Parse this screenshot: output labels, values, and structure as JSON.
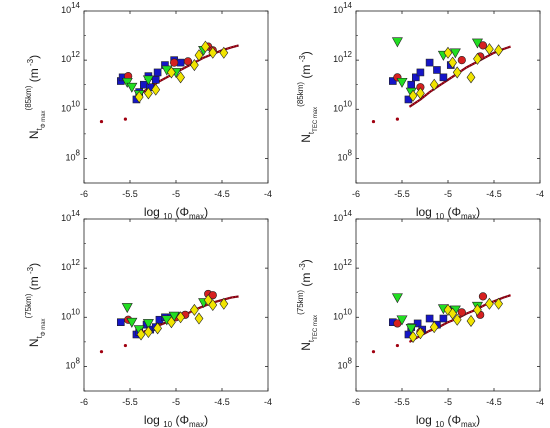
{
  "chart_data": [
    {
      "type": "scatter",
      "xlabel": {
        "main": "log",
        "sub": "10",
        "arg_prefix": "(Φ",
        "arg_sub": "max",
        "arg_suffix": ")"
      },
      "ylabel": {
        "base": "N",
        "sup": "(85km)",
        "sub": "t",
        "subsub": "Φ max",
        "units": "(m",
        "units_sup": "-3",
        "units_close": ")"
      },
      "xlim": [
        -6,
        -4
      ],
      "ylim_log10": [
        7,
        14
      ],
      "log_y": true,
      "x_ticks": [
        "-6",
        "-5.5",
        "-5",
        "-4.5",
        "-4"
      ],
      "y_ticks": [
        {
          "base": "10",
          "exp": "8",
          "v": 8
        },
        {
          "base": "10",
          "exp": "10",
          "v": 10
        },
        {
          "base": "10",
          "exp": "12",
          "v": 12
        },
        {
          "base": "10",
          "exp": "14",
          "v": 14
        }
      ],
      "grid": false,
      "fit_curve": {
        "x": [
          -5.42,
          -5.3,
          -5.2,
          -5.1,
          -5.0,
          -4.9,
          -4.8,
          -4.7,
          -4.6,
          -4.5,
          -4.4,
          -4.32
        ],
        "log10_y": [
          10.55,
          10.85,
          11.1,
          11.3,
          11.5,
          11.7,
          11.9,
          12.1,
          12.25,
          12.4,
          12.52,
          12.6
        ]
      },
      "small_dots_x": [
        -5.81,
        -5.55
      ],
      "small_dots_log10_y": [
        9.5,
        9.6
      ],
      "series": [
        {
          "marker": "square",
          "color": "#1515c8",
          "points": [
            [
              -5.6,
              11.15
            ],
            [
              -5.58,
              11.3
            ],
            [
              -5.43,
              10.4
            ],
            [
              -5.4,
              10.7
            ],
            [
              -5.35,
              11.0
            ],
            [
              -5.3,
              11.35
            ],
            [
              -5.28,
              10.9
            ],
            [
              -5.22,
              11.2
            ],
            [
              -5.2,
              11.5
            ],
            [
              -5.12,
              11.8
            ],
            [
              -5.02,
              12.0
            ],
            [
              -4.95,
              11.9
            ]
          ]
        },
        {
          "marker": "circle",
          "color": "#d62020",
          "points": [
            [
              -5.52,
              11.35
            ],
            [
              -5.02,
              11.9
            ],
            [
              -4.87,
              11.95
            ],
            [
              -4.65,
              12.55
            ],
            [
              -4.6,
              12.4
            ]
          ]
        },
        {
          "marker": "triangle-down",
          "color": "#22dd22",
          "points": [
            [
              -5.53,
              11.1
            ],
            [
              -5.48,
              10.9
            ],
            [
              -5.4,
              10.6
            ],
            [
              -5.3,
              11.2
            ],
            [
              -5.1,
              11.6
            ],
            [
              -5.0,
              11.5
            ],
            [
              -4.7,
              12.4
            ]
          ]
        },
        {
          "marker": "diamond",
          "color": "#f1e400",
          "points": [
            [
              -5.4,
              10.5
            ],
            [
              -5.3,
              10.65
            ],
            [
              -5.22,
              10.8
            ],
            [
              -5.05,
              11.5
            ],
            [
              -4.95,
              11.3
            ],
            [
              -4.8,
              11.8
            ],
            [
              -4.75,
              12.2
            ],
            [
              -4.68,
              12.55
            ],
            [
              -4.6,
              12.3
            ],
            [
              -4.48,
              12.3
            ]
          ]
        }
      ]
    },
    {
      "type": "scatter",
      "xlabel": {
        "main": "log",
        "sub": "10",
        "arg_prefix": "(Φ",
        "arg_sub": "max",
        "arg_suffix": ")"
      },
      "ylabel": {
        "base": "N",
        "sup": "(85km)",
        "sub": "t",
        "subsub": "TEC max",
        "units": "(m",
        "units_sup": "-3",
        "units_close": ")"
      },
      "xlim": [
        -6,
        -4
      ],
      "ylim_log10": [
        7,
        14
      ],
      "log_y": true,
      "x_ticks": [
        "-6",
        "-5.5",
        "-5",
        "-4.5",
        "-4"
      ],
      "y_ticks": [
        {
          "base": "10",
          "exp": "8",
          "v": 8
        },
        {
          "base": "10",
          "exp": "10",
          "v": 10
        },
        {
          "base": "10",
          "exp": "12",
          "v": 12
        },
        {
          "base": "10",
          "exp": "14",
          "v": 14
        }
      ],
      "grid": false,
      "fit_curve": {
        "x": [
          -5.42,
          -5.3,
          -5.2,
          -5.1,
          -5.0,
          -4.9,
          -4.8,
          -4.7,
          -4.6,
          -4.5,
          -4.4,
          -4.32
        ],
        "log10_y": [
          10.1,
          10.4,
          10.7,
          10.95,
          11.2,
          11.45,
          11.7,
          11.9,
          12.1,
          12.3,
          12.45,
          12.55
        ]
      },
      "small_dots_x": [
        -5.81,
        -5.55
      ],
      "small_dots_log10_y": [
        9.5,
        9.6
      ],
      "series": [
        {
          "marker": "square",
          "color": "#1515c8",
          "points": [
            [
              -5.6,
              11.15
            ],
            [
              -5.43,
              10.4
            ],
            [
              -5.4,
              11.0
            ],
            [
              -5.35,
              11.3
            ],
            [
              -5.3,
              11.5
            ],
            [
              -5.2,
              11.9
            ],
            [
              -5.12,
              11.6
            ],
            [
              -5.05,
              11.3
            ],
            [
              -4.97,
              11.8
            ]
          ]
        },
        {
          "marker": "circle",
          "color": "#d62020",
          "points": [
            [
              -5.55,
              11.3
            ],
            [
              -5.3,
              10.9
            ],
            [
              -4.85,
              12.0
            ],
            [
              -4.65,
              12.15
            ],
            [
              -4.62,
              12.6
            ]
          ]
        },
        {
          "marker": "triangle-down",
          "color": "#22dd22",
          "points": [
            [
              -5.55,
              12.75
            ],
            [
              -5.5,
              11.1
            ],
            [
              -5.4,
              10.7
            ],
            [
              -5.05,
              12.2
            ],
            [
              -4.92,
              12.3
            ],
            [
              -4.68,
              12.7
            ]
          ]
        },
        {
          "marker": "diamond",
          "color": "#f1e400",
          "points": [
            [
              -5.38,
              10.55
            ],
            [
              -5.3,
              10.65
            ],
            [
              -5.15,
              11.0
            ],
            [
              -5.0,
              12.3
            ],
            [
              -4.95,
              11.9
            ],
            [
              -4.9,
              11.5
            ],
            [
              -4.75,
              11.3
            ],
            [
              -4.68,
              12.05
            ],
            [
              -4.55,
              12.45
            ],
            [
              -4.45,
              12.4
            ]
          ]
        }
      ]
    },
    {
      "type": "scatter",
      "xlabel": {
        "main": "log",
        "sub": "10",
        "arg_prefix": "(Φ",
        "arg_sub": "max",
        "arg_suffix": ")"
      },
      "ylabel": {
        "base": "N",
        "sup": "(75km)",
        "sub": "t",
        "subsub": "Φ max",
        "units": "(m",
        "units_sup": "-3",
        "units_close": ")"
      },
      "xlim": [
        -6,
        -4
      ],
      "ylim_log10": [
        7,
        14
      ],
      "log_y": true,
      "x_ticks": [
        "-6",
        "-5.5",
        "-5",
        "-4.5",
        "-4"
      ],
      "y_ticks": [
        {
          "base": "10",
          "exp": "8",
          "v": 8
        },
        {
          "base": "10",
          "exp": "10",
          "v": 10
        },
        {
          "base": "10",
          "exp": "12",
          "v": 12
        },
        {
          "base": "10",
          "exp": "14",
          "v": 14
        }
      ],
      "grid": false,
      "fit_curve": {
        "x": [
          -5.42,
          -5.3,
          -5.2,
          -5.1,
          -5.0,
          -4.9,
          -4.8,
          -4.7,
          -4.6,
          -4.5,
          -4.4,
          -4.32
        ],
        "log10_y": [
          9.3,
          9.5,
          9.65,
          9.8,
          9.95,
          10.1,
          10.3,
          10.45,
          10.6,
          10.7,
          10.8,
          10.85
        ]
      },
      "small_dots_x": [
        -5.81,
        -5.55
      ],
      "small_dots_log10_y": [
        8.6,
        8.85
      ],
      "series": [
        {
          "marker": "square",
          "color": "#1515c8",
          "points": [
            [
              -5.6,
              9.8
            ],
            [
              -5.43,
              9.3
            ],
            [
              -5.4,
              9.4
            ],
            [
              -5.32,
              9.7
            ],
            [
              -5.28,
              9.5
            ],
            [
              -5.22,
              9.6
            ],
            [
              -5.18,
              9.9
            ],
            [
              -5.12,
              10.0
            ],
            [
              -5.05,
              10.0
            ],
            [
              -4.98,
              10.05
            ]
          ]
        },
        {
          "marker": "circle",
          "color": "#d62020",
          "points": [
            [
              -5.52,
              9.9
            ],
            [
              -5.0,
              10.0
            ],
            [
              -4.9,
              10.1
            ],
            [
              -4.65,
              10.95
            ],
            [
              -4.6,
              10.9
            ]
          ]
        },
        {
          "marker": "triangle-down",
          "color": "#22dd22",
          "points": [
            [
              -5.53,
              10.4
            ],
            [
              -5.48,
              9.8
            ],
            [
              -5.4,
              9.5
            ],
            [
              -5.3,
              9.75
            ],
            [
              -5.1,
              9.9
            ],
            [
              -5.02,
              10.05
            ],
            [
              -4.7,
              10.6
            ]
          ]
        },
        {
          "marker": "diamond",
          "color": "#f1e400",
          "points": [
            [
              -5.38,
              9.3
            ],
            [
              -5.3,
              9.4
            ],
            [
              -5.2,
              9.55
            ],
            [
              -5.05,
              9.8
            ],
            [
              -4.95,
              10.0
            ],
            [
              -4.8,
              10.3
            ],
            [
              -4.75,
              9.95
            ],
            [
              -4.65,
              10.7
            ],
            [
              -4.6,
              10.5
            ],
            [
              -4.48,
              10.55
            ]
          ]
        }
      ]
    },
    {
      "type": "scatter",
      "xlabel": {
        "main": "log",
        "sub": "10",
        "arg_prefix": "(Φ",
        "arg_sub": "max",
        "arg_suffix": ")"
      },
      "ylabel": {
        "base": "N",
        "sup": "(75km)",
        "sub": "t",
        "subsub": "TEC max",
        "units": "(m",
        "units_sup": "-3",
        "units_close": ")"
      },
      "xlim": [
        -6,
        -4
      ],
      "ylim_log10": [
        7,
        14
      ],
      "log_y": true,
      "x_ticks": [
        "-6",
        "-5.5",
        "-5",
        "-4.5",
        "-4"
      ],
      "y_ticks": [
        {
          "base": "10",
          "exp": "8",
          "v": 8
        },
        {
          "base": "10",
          "exp": "10",
          "v": 10
        },
        {
          "base": "10",
          "exp": "12",
          "v": 12
        },
        {
          "base": "10",
          "exp": "14",
          "v": 14
        }
      ],
      "grid": false,
      "fit_curve": {
        "x": [
          -5.42,
          -5.3,
          -5.2,
          -5.1,
          -5.0,
          -4.9,
          -4.8,
          -4.7,
          -4.6,
          -4.5,
          -4.4,
          -4.32
        ],
        "log10_y": [
          9.0,
          9.25,
          9.45,
          9.6,
          9.8,
          9.95,
          10.15,
          10.3,
          10.5,
          10.65,
          10.8,
          10.9
        ]
      },
      "small_dots_x": [
        -5.81,
        -5.55
      ],
      "small_dots_log10_y": [
        8.6,
        8.85
      ],
      "series": [
        {
          "marker": "square",
          "color": "#1515c8",
          "points": [
            [
              -5.6,
              9.8
            ],
            [
              -5.43,
              9.3
            ],
            [
              -5.4,
              9.6
            ],
            [
              -5.33,
              9.75
            ],
            [
              -5.28,
              9.5
            ],
            [
              -5.2,
              9.95
            ],
            [
              -5.12,
              9.7
            ],
            [
              -5.05,
              9.95
            ],
            [
              -4.97,
              10.3
            ]
          ]
        },
        {
          "marker": "circle",
          "color": "#d62020",
          "points": [
            [
              -5.55,
              9.75
            ],
            [
              -5.3,
              9.4
            ],
            [
              -4.85,
              10.2
            ],
            [
              -4.65,
              10.1
            ],
            [
              -4.62,
              10.85
            ]
          ]
        },
        {
          "marker": "triangle-down",
          "color": "#22dd22",
          "points": [
            [
              -5.55,
              10.8
            ],
            [
              -5.5,
              9.9
            ],
            [
              -5.4,
              9.55
            ],
            [
              -5.05,
              10.35
            ],
            [
              -4.92,
              10.3
            ],
            [
              -4.68,
              10.45
            ]
          ]
        },
        {
          "marker": "diamond",
          "color": "#f1e400",
          "points": [
            [
              -5.38,
              9.2
            ],
            [
              -5.3,
              9.35
            ],
            [
              -5.15,
              9.6
            ],
            [
              -5.0,
              10.3
            ],
            [
              -4.95,
              10.15
            ],
            [
              -4.9,
              9.9
            ],
            [
              -4.75,
              9.85
            ],
            [
              -4.68,
              10.3
            ],
            [
              -4.55,
              10.55
            ],
            [
              -4.45,
              10.55
            ]
          ]
        }
      ]
    }
  ]
}
